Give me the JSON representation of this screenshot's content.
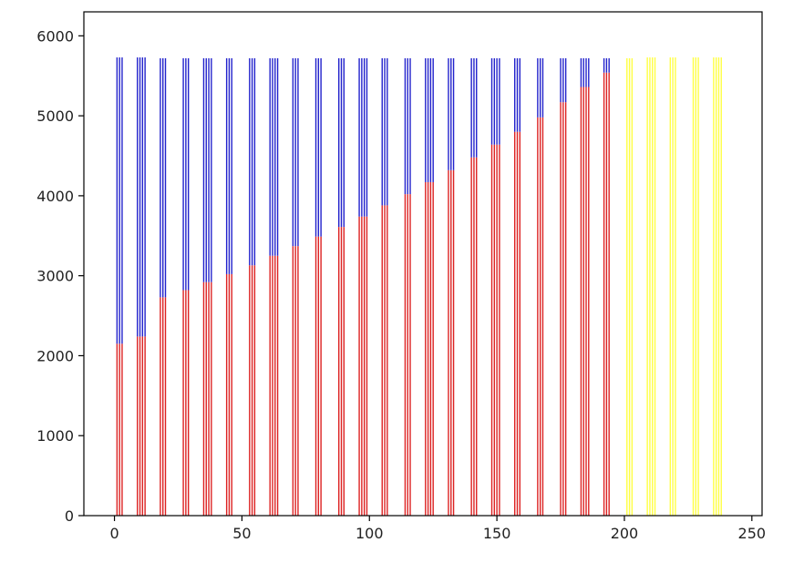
{
  "chart_data": {
    "type": "bar",
    "stacked": true,
    "xlim": [
      -12,
      254
    ],
    "ylim": [
      0,
      6300
    ],
    "x_ticks": [
      0,
      50,
      100,
      150,
      200,
      250
    ],
    "y_ticks": [
      0,
      1000,
      2000,
      3000,
      4000,
      5000,
      6000
    ],
    "x_tick_labels": [
      "0",
      "50",
      "100",
      "150",
      "200",
      "250"
    ],
    "y_tick_labels": [
      "0",
      "1000",
      "2000",
      "3000",
      "4000",
      "5000",
      "6000"
    ],
    "grid": false,
    "colors": {
      "lower": "#dd2222",
      "upper": "#2222cc",
      "extra": "#ffff44"
    },
    "groups": [
      {
        "x": [
          1,
          2,
          3
        ],
        "lower": 2150,
        "total": 5730
      },
      {
        "x": [
          9,
          10,
          11,
          12
        ],
        "lower": 2240,
        "total": 5730
      },
      {
        "x": [
          18,
          19,
          20
        ],
        "lower": 2730,
        "total": 5720
      },
      {
        "x": [
          27,
          28,
          29
        ],
        "lower": 2820,
        "total": 5720
      },
      {
        "x": [
          35,
          36,
          37,
          38
        ],
        "lower": 2920,
        "total": 5720
      },
      {
        "x": [
          44,
          45,
          46
        ],
        "lower": 3020,
        "total": 5720
      },
      {
        "x": [
          53,
          54,
          55
        ],
        "lower": 3130,
        "total": 5720
      },
      {
        "x": [
          61,
          62,
          63,
          64
        ],
        "lower": 3250,
        "total": 5720
      },
      {
        "x": [
          70,
          71,
          72
        ],
        "lower": 3370,
        "total": 5720
      },
      {
        "x": [
          79,
          80,
          81
        ],
        "lower": 3490,
        "total": 5720
      },
      {
        "x": [
          88,
          89,
          90
        ],
        "lower": 3610,
        "total": 5720
      },
      {
        "x": [
          96,
          97,
          98,
          99
        ],
        "lower": 3740,
        "total": 5720
      },
      {
        "x": [
          105,
          106,
          107
        ],
        "lower": 3880,
        "total": 5720
      },
      {
        "x": [
          114,
          115,
          116
        ],
        "lower": 4020,
        "total": 5720
      },
      {
        "x": [
          122,
          123,
          124,
          125
        ],
        "lower": 4170,
        "total": 5720
      },
      {
        "x": [
          131,
          132,
          133
        ],
        "lower": 4320,
        "total": 5720
      },
      {
        "x": [
          140,
          141,
          142
        ],
        "lower": 4480,
        "total": 5720
      },
      {
        "x": [
          148,
          149,
          150,
          151
        ],
        "lower": 4640,
        "total": 5720
      },
      {
        "x": [
          157,
          158,
          159
        ],
        "lower": 4800,
        "total": 5720
      },
      {
        "x": [
          166,
          167,
          168
        ],
        "lower": 4980,
        "total": 5720
      },
      {
        "x": [
          175,
          176,
          177
        ],
        "lower": 5170,
        "total": 5720
      },
      {
        "x": [
          183,
          184,
          185,
          186
        ],
        "lower": 5360,
        "total": 5720
      },
      {
        "x": [
          192,
          193,
          194
        ],
        "lower": 5540,
        "total": 5720
      }
    ],
    "extra_groups": [
      {
        "x": [
          201,
          202,
          203
        ],
        "value": 5720
      },
      {
        "x": [
          209,
          210,
          211,
          212
        ],
        "value": 5730
      },
      {
        "x": [
          218,
          219,
          220
        ],
        "value": 5730
      },
      {
        "x": [
          227,
          228,
          229
        ],
        "value": 5730
      },
      {
        "x": [
          235,
          236,
          237,
          238
        ],
        "value": 5730
      }
    ]
  }
}
